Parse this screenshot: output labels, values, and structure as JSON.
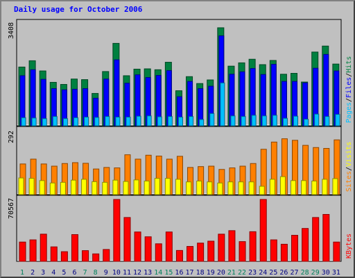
{
  "title": "Daily usage for October 2006",
  "colors": {
    "hits": "#008040",
    "files": "#0000ff",
    "pages": "#00c0ff",
    "visits": "#ffff00",
    "sites": "#ff8000",
    "kbytes": "#ff0000",
    "weekend": "#00805c",
    "weekday": "#000080",
    "separator": "#000000"
  },
  "chart_data": [
    {
      "type": "bar",
      "categories": [
        "1",
        "2",
        "3",
        "4",
        "5",
        "6",
        "7",
        "8",
        "9",
        "10",
        "11",
        "12",
        "13",
        "14",
        "15",
        "16",
        "17",
        "18",
        "19",
        "20",
        "21",
        "22",
        "23",
        "24",
        "25",
        "26",
        "27",
        "28",
        "29",
        "30",
        "31"
      ],
      "weekend_days": [
        "1",
        "7",
        "8",
        "14",
        "15",
        "21",
        "22",
        "28",
        "29"
      ],
      "ylim": [
        0,
        3408
      ],
      "ytick": "3408",
      "right_label": [
        "Pages",
        "Files",
        "Hits"
      ],
      "series": [
        {
          "name": "Hits",
          "values": [
            1960,
            2170,
            1830,
            1450,
            1380,
            1560,
            1540,
            1080,
            1810,
            2750,
            1670,
            1890,
            1900,
            1870,
            2120,
            1170,
            1640,
            1410,
            1530,
            3270,
            1990,
            2100,
            2220,
            2040,
            2180,
            1720,
            1750,
            1460,
            2460,
            2660,
            2060
          ]
        },
        {
          "name": "Files",
          "values": [
            1670,
            1870,
            1550,
            1240,
            1200,
            1220,
            1240,
            920,
            1560,
            2200,
            1420,
            1700,
            1610,
            1680,
            1840,
            970,
            1480,
            1240,
            1320,
            3000,
            1720,
            1800,
            1910,
            1710,
            2050,
            1480,
            1480,
            1430,
            1920,
            2380,
            1830
          ]
        },
        {
          "name": "Pages",
          "values": [
            270,
            260,
            240,
            310,
            240,
            270,
            290,
            280,
            310,
            290,
            290,
            320,
            330,
            300,
            310,
            290,
            310,
            210,
            410,
            1430,
            330,
            310,
            350,
            330,
            350,
            250,
            320,
            220,
            390,
            310,
            380
          ]
        }
      ]
    },
    {
      "type": "bar",
      "categories": [
        "1",
        "2",
        "3",
        "4",
        "5",
        "6",
        "7",
        "8",
        "9",
        "10",
        "11",
        "12",
        "13",
        "14",
        "15",
        "16",
        "17",
        "18",
        "19",
        "20",
        "21",
        "22",
        "23",
        "24",
        "25",
        "26",
        "27",
        "28",
        "29",
        "30",
        "31"
      ],
      "ylim": [
        0,
        292
      ],
      "ytick": "292",
      "right_label": [
        "Sites",
        "Visits"
      ],
      "series": [
        {
          "name": "Sites",
          "values": [
            140,
            162,
            140,
            130,
            142,
            146,
            143,
            117,
            124,
            122,
            182,
            162,
            180,
            176,
            162,
            175,
            124,
            128,
            130,
            115,
            122,
            130,
            142,
            207,
            240,
            255,
            248,
            225,
            215,
            211,
            250
          ]
        },
        {
          "name": "Visits",
          "values": [
            76,
            74,
            64,
            53,
            56,
            66,
            70,
            59,
            56,
            66,
            60,
            67,
            62,
            74,
            74,
            70,
            58,
            62,
            58,
            53,
            58,
            58,
            58,
            38,
            70,
            82,
            64,
            64,
            62,
            70,
            73
          ]
        }
      ]
    },
    {
      "type": "bar",
      "categories": [
        "1",
        "2",
        "3",
        "4",
        "5",
        "6",
        "7",
        "8",
        "9",
        "10",
        "11",
        "12",
        "13",
        "14",
        "15",
        "16",
        "17",
        "18",
        "19",
        "20",
        "21",
        "22",
        "23",
        "24",
        "25",
        "26",
        "27",
        "28",
        "29",
        "30",
        "31"
      ],
      "ylim": [
        0,
        70567
      ],
      "ytick": "70567",
      "right_label": [
        "KBytes"
      ],
      "series": [
        {
          "name": "KBytes",
          "values": [
            22000,
            24500,
            31000,
            16500,
            11000,
            30500,
            12200,
            8500,
            13500,
            70567,
            50000,
            33500,
            28000,
            20000,
            33500,
            12400,
            17000,
            20800,
            23000,
            31000,
            35000,
            22500,
            33800,
            70567,
            24500,
            19500,
            29700,
            37500,
            50000,
            53500,
            22000
          ]
        }
      ]
    }
  ]
}
